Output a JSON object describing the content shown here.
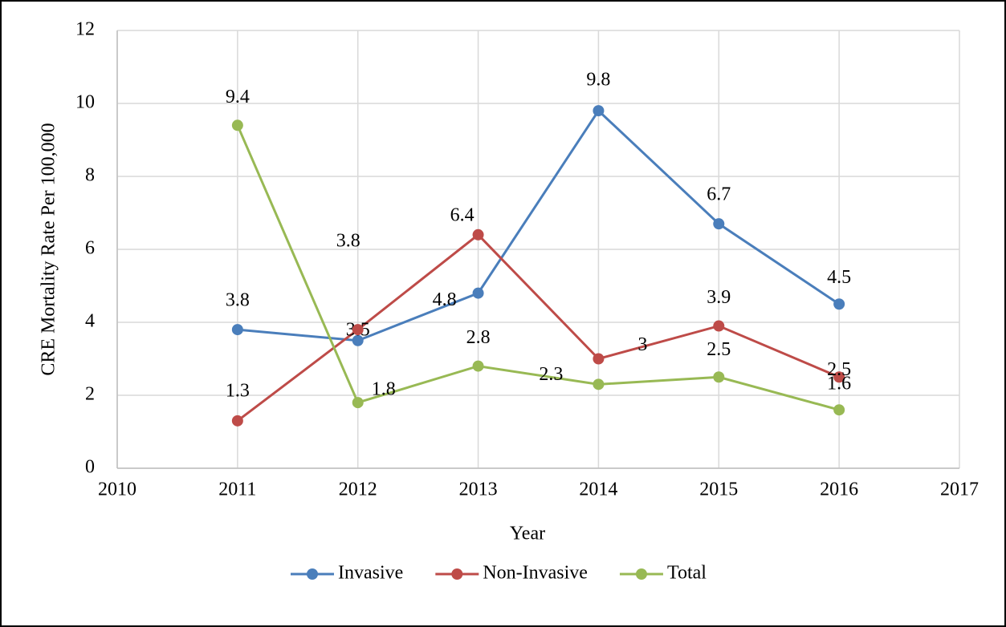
{
  "chart_data": {
    "type": "line",
    "x_label": "Year",
    "y_label": "CRE Mortality Rate Per 100,000",
    "x": [
      2011,
      2012,
      2013,
      2014,
      2015,
      2016
    ],
    "series": [
      {
        "name": "Invasive",
        "color": "#4a7ebb",
        "values": [
          3.8,
          3.5,
          4.8,
          9.8,
          6.7,
          4.5
        ]
      },
      {
        "name": "Non-Invasive",
        "color": "#be4b48",
        "values": [
          1.3,
          3.8,
          6.4,
          3,
          3.9,
          2.5
        ]
      },
      {
        "name": "Total",
        "color": "#98b954",
        "values": [
          9.4,
          1.8,
          2.8,
          2.3,
          2.5,
          1.6
        ]
      }
    ],
    "xlim": [
      2010,
      2017
    ],
    "xticks": [
      2010,
      2011,
      2012,
      2013,
      2014,
      2015,
      2016,
      2017
    ],
    "ylim": [
      0,
      12
    ],
    "yticks": [
      0,
      2,
      4,
      6,
      8,
      10,
      12
    ],
    "grid": true,
    "legend": "bottom"
  }
}
